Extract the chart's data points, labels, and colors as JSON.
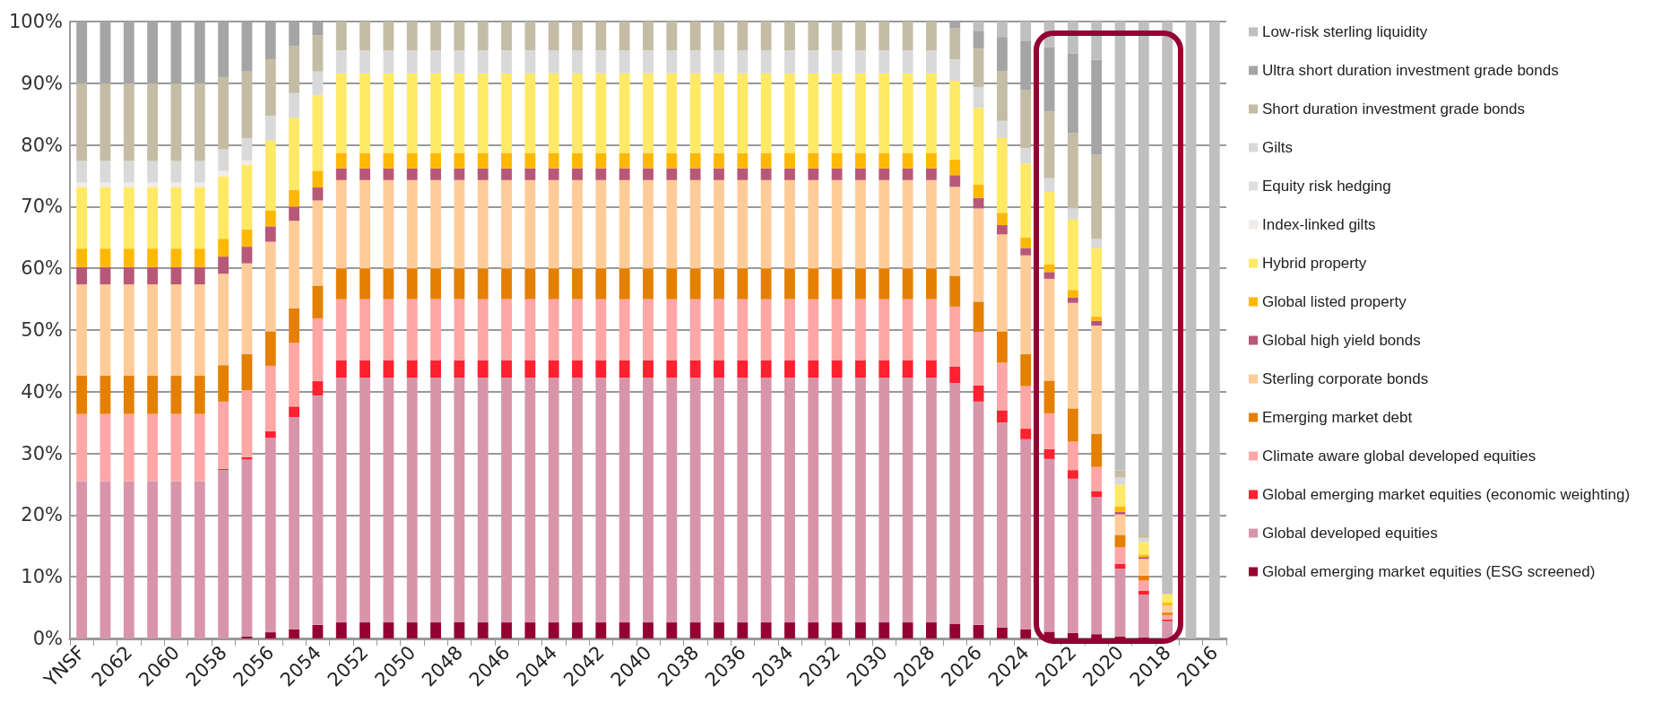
{
  "chart_data": {
    "type": "bar",
    "stacked": true,
    "grid": "y",
    "legend": "right",
    "categories": [
      "YNSF",
      null,
      "2062",
      null,
      "2060",
      null,
      "2058",
      null,
      "2056",
      null,
      "2054",
      null,
      "2052",
      null,
      "2050",
      null,
      "2048",
      null,
      "2046",
      null,
      "2044",
      null,
      "2042",
      null,
      "2040",
      null,
      "2038",
      null,
      "2036",
      null,
      "2034",
      null,
      "2032",
      null,
      "2030",
      null,
      "2028",
      null,
      "2026",
      null,
      "2024",
      null,
      "2022",
      null,
      "2020",
      null,
      "2018",
      null,
      "2016"
    ],
    "ylim": [
      0,
      100
    ],
    "yticks": [
      {
        "value": 0,
        "label": "0%"
      },
      {
        "value": 10,
        "label": "10%"
      },
      {
        "value": 20,
        "label": "20%"
      },
      {
        "value": 30,
        "label": "30%"
      },
      {
        "value": 40,
        "label": "40%"
      },
      {
        "value": 50,
        "label": "50%"
      },
      {
        "value": 60,
        "label": "60%"
      },
      {
        "value": 70,
        "label": "70%"
      },
      {
        "value": 80,
        "label": "80%"
      },
      {
        "value": 90,
        "label": "90%"
      },
      {
        "value": 100,
        "label": "100%"
      }
    ],
    "series": [
      {
        "name": "Global emerging market equities (ESG screened)",
        "color": "#940031",
        "values": [
          0,
          0,
          0,
          0,
          0,
          0,
          0,
          0.3,
          1.0,
          1.5,
          2.2,
          2.6,
          2.6,
          2.6,
          2.6,
          2.6,
          2.6,
          2.6,
          2.6,
          2.6,
          2.6,
          2.6,
          2.6,
          2.6,
          2.6,
          2.6,
          2.6,
          2.6,
          2.6,
          2.6,
          2.6,
          2.6,
          2.6,
          2.6,
          2.6,
          2.6,
          2.6,
          2.4,
          2.2,
          1.8,
          1.5,
          1.1,
          0.9,
          0.7,
          0.3,
          0.2,
          0,
          0,
          0
        ]
      },
      {
        "name": "Global developed equities",
        "color": "#d895aa",
        "values": [
          25.5,
          25.5,
          25.5,
          25.5,
          25.5,
          25.5,
          27.3,
          28.7,
          31.5,
          34.4,
          37.2,
          39.7,
          39.7,
          39.7,
          39.7,
          39.7,
          39.7,
          39.7,
          39.7,
          39.7,
          39.7,
          39.7,
          39.7,
          39.7,
          39.7,
          39.7,
          39.7,
          39.7,
          39.7,
          39.7,
          39.7,
          39.7,
          39.7,
          39.7,
          39.7,
          39.7,
          39.7,
          39.0,
          36.2,
          33.2,
          30.8,
          28.0,
          25.0,
          22.2,
          11.0,
          6.9,
          2.8,
          0,
          0
        ]
      },
      {
        "name": "Global emerging market equities (economic weighting)",
        "color": "#ff2030",
        "values": [
          0,
          0,
          0,
          0,
          0,
          0,
          0.2,
          0.4,
          1.1,
          1.7,
          2.3,
          2.8,
          2.8,
          2.8,
          2.8,
          2.8,
          2.8,
          2.8,
          2.8,
          2.8,
          2.8,
          2.8,
          2.8,
          2.8,
          2.8,
          2.8,
          2.8,
          2.8,
          2.8,
          2.8,
          2.8,
          2.8,
          2.8,
          2.8,
          2.8,
          2.8,
          2.8,
          2.7,
          2.6,
          2.0,
          1.7,
          1.6,
          1.4,
          1.0,
          0.8,
          0.6,
          0.3,
          0,
          0
        ]
      },
      {
        "name": "Climate aware global developed equities",
        "color": "#ffa6a6",
        "values": [
          10.9,
          10.9,
          10.9,
          10.9,
          10.9,
          10.9,
          10.9,
          10.8,
          10.6,
          10.3,
          10.2,
          9.9,
          9.9,
          9.9,
          9.9,
          9.9,
          9.9,
          9.9,
          9.9,
          9.9,
          9.9,
          9.9,
          9.9,
          9.9,
          9.9,
          9.9,
          9.9,
          9.9,
          9.9,
          9.9,
          9.9,
          9.9,
          9.9,
          9.9,
          9.9,
          9.9,
          9.9,
          9.7,
          8.7,
          7.7,
          6.9,
          5.8,
          4.6,
          3.9,
          2.7,
          1.7,
          0.7,
          0,
          0
        ]
      },
      {
        "name": "Emerging market debt",
        "color": "#e57f00",
        "values": [
          6.2,
          6.2,
          6.2,
          6.2,
          6.2,
          6.2,
          5.9,
          5.9,
          5.6,
          5.6,
          5.3,
          5.0,
          5.0,
          5.0,
          5.0,
          5.0,
          5.0,
          5.0,
          5.0,
          5.0,
          5.0,
          5.0,
          5.0,
          5.0,
          5.0,
          5.0,
          5.0,
          5.0,
          5.0,
          5.0,
          5.0,
          5.0,
          5.0,
          5.0,
          5.0,
          5.0,
          5.0,
          5.0,
          4.9,
          5.1,
          5.2,
          5.3,
          5.4,
          5.4,
          2.0,
          0.8,
          0.4,
          0,
          0
        ]
      },
      {
        "name": "Sterling corporate bonds",
        "color": "#ffcc99",
        "values": [
          14.8,
          14.8,
          14.8,
          14.8,
          14.8,
          14.8,
          14.8,
          14.7,
          14.5,
          14.2,
          13.8,
          14.3,
          14.3,
          14.3,
          14.3,
          14.3,
          14.3,
          14.3,
          14.3,
          14.3,
          14.3,
          14.3,
          14.3,
          14.3,
          14.3,
          14.3,
          14.3,
          14.3,
          14.3,
          14.3,
          14.3,
          14.3,
          14.3,
          14.3,
          14.3,
          14.3,
          14.3,
          14.4,
          15.1,
          15.7,
          16.0,
          16.5,
          17.1,
          17.5,
          3.3,
          2.7,
          1.2,
          0,
          0
        ]
      },
      {
        "name": "Global high yield bonds",
        "color": "#b85878",
        "values": [
          2.8,
          2.8,
          2.8,
          2.8,
          2.8,
          2.8,
          2.8,
          2.7,
          2.5,
          2.3,
          2.1,
          1.9,
          1.9,
          1.9,
          1.9,
          1.9,
          1.9,
          1.9,
          1.9,
          1.9,
          1.9,
          1.9,
          1.9,
          1.9,
          1.9,
          1.9,
          1.9,
          1.9,
          1.9,
          1.9,
          1.9,
          1.9,
          1.9,
          1.9,
          1.9,
          1.9,
          1.9,
          1.9,
          1.7,
          1.5,
          1.2,
          1.1,
          0.9,
          0.8,
          0.4,
          0.3,
          0,
          0,
          0
        ]
      },
      {
        "name": "Global listed property",
        "color": "#ffb800",
        "values": [
          3.0,
          3.0,
          3.0,
          3.0,
          3.0,
          3.0,
          2.9,
          2.8,
          2.6,
          2.7,
          2.7,
          2.5,
          2.5,
          2.5,
          2.5,
          2.5,
          2.5,
          2.5,
          2.5,
          2.5,
          2.5,
          2.5,
          2.5,
          2.5,
          2.5,
          2.5,
          2.5,
          2.5,
          2.5,
          2.5,
          2.5,
          2.5,
          2.5,
          2.5,
          2.5,
          2.5,
          2.5,
          2.5,
          2.2,
          2.0,
          1.7,
          1.2,
          1.2,
          0.7,
          0.9,
          0.4,
          0.4,
          0,
          0
        ]
      },
      {
        "name": "Hybrid property",
        "color": "#ffe965",
        "values": [
          9.9,
          9.9,
          9.9,
          9.9,
          9.9,
          9.9,
          10.1,
          10.5,
          11.3,
          11.7,
          12.3,
          12.9,
          12.9,
          12.9,
          12.9,
          12.9,
          12.9,
          12.9,
          12.9,
          12.9,
          12.9,
          12.9,
          12.9,
          12.9,
          12.9,
          12.9,
          12.9,
          12.9,
          12.9,
          12.9,
          12.9,
          12.9,
          12.9,
          12.9,
          12.9,
          12.9,
          12.9,
          12.8,
          12.4,
          12.1,
          12.0,
          11.8,
          11.4,
          11.1,
          3.5,
          2.0,
          1.4,
          0,
          0
        ]
      },
      {
        "name": "Index-linked gilts",
        "color": "#f2ebe6",
        "values": [
          0.8,
          0.8,
          0.8,
          0.8,
          0.8,
          0.8,
          0.9,
          0.7,
          0,
          0,
          0,
          0,
          0,
          0,
          0,
          0,
          0,
          0,
          0,
          0,
          0,
          0,
          0,
          0,
          0,
          0,
          0,
          0,
          0,
          0,
          0,
          0,
          0,
          0,
          0,
          0,
          0,
          0,
          0,
          0,
          0,
          0,
          0,
          0,
          0,
          0,
          0,
          0,
          0
        ]
      },
      {
        "name": "Equity risk hedging",
        "color": "#dedede",
        "values": [
          0,
          0,
          0,
          0,
          0,
          0,
          0,
          0,
          0,
          0,
          0,
          0,
          0,
          0,
          0,
          0,
          0,
          0,
          0,
          0,
          0,
          0,
          0,
          0,
          0,
          0,
          0,
          0,
          0,
          0,
          0,
          0,
          0,
          0,
          0,
          0,
          0,
          0,
          0,
          0,
          0,
          0,
          0,
          0,
          0,
          0,
          0,
          0,
          0
        ]
      },
      {
        "name": "Gilts",
        "color": "#d9d9d9",
        "values": [
          3.5,
          3.5,
          3.5,
          3.5,
          3.5,
          3.5,
          3.5,
          3.6,
          4.0,
          4.0,
          3.8,
          3.7,
          3.7,
          3.7,
          3.7,
          3.7,
          3.7,
          3.7,
          3.7,
          3.7,
          3.7,
          3.7,
          3.7,
          3.7,
          3.7,
          3.7,
          3.7,
          3.7,
          3.7,
          3.7,
          3.7,
          3.7,
          3.7,
          3.7,
          3.7,
          3.7,
          3.7,
          3.5,
          3.4,
          2.8,
          2.5,
          2.2,
          1.8,
          1.5,
          1.2,
          0.7,
          0,
          0,
          0
        ]
      },
      {
        "name": "Short duration investment grade bonds",
        "color": "#c4bca4",
        "values": [
          12.6,
          12.6,
          12.6,
          12.6,
          12.6,
          12.6,
          11.7,
          10.8,
          9.2,
          7.6,
          5.9,
          4.7,
          4.7,
          4.7,
          4.7,
          4.7,
          4.7,
          4.7,
          4.7,
          4.7,
          4.7,
          4.7,
          4.7,
          4.7,
          4.7,
          4.7,
          4.7,
          4.7,
          4.7,
          4.7,
          4.7,
          4.7,
          4.7,
          4.7,
          4.7,
          4.7,
          4.7,
          5.0,
          6.2,
          8.1,
          9.4,
          10.8,
          12.2,
          13.6,
          1.1,
          0.7,
          0,
          0,
          0
        ]
      },
      {
        "name": "Ultra short duration investment grade bonds",
        "color": "#a5a5a5",
        "values": [
          10.0,
          10.0,
          10.0,
          10.0,
          10.0,
          10.0,
          9.0,
          8.1,
          6.1,
          4.0,
          2.2,
          0,
          0,
          0,
          0,
          0,
          0,
          0,
          0,
          0,
          0,
          0,
          0,
          0,
          0,
          0,
          0,
          0,
          0,
          0,
          0,
          0,
          0,
          0,
          0,
          0,
          0,
          1.1,
          2.9,
          5.5,
          7.9,
          10.4,
          12.9,
          15.4,
          0,
          0,
          0,
          0,
          0
        ]
      },
      {
        "name": "Low-risk sterling liquidity",
        "color": "#bfbfbf",
        "values": [
          0,
          0,
          0,
          0,
          0,
          0,
          0,
          0,
          0,
          0,
          0,
          0,
          0,
          0,
          0,
          0,
          0,
          0,
          0,
          0,
          0,
          0,
          0,
          0,
          0,
          0,
          0,
          0,
          0,
          0,
          0,
          0,
          0,
          0,
          0,
          0,
          0,
          0,
          1.5,
          2.5,
          3.2,
          4.2,
          5.2,
          6.2,
          72.8,
          83.0,
          92.8,
          100,
          100
        ]
      }
    ]
  }
}
